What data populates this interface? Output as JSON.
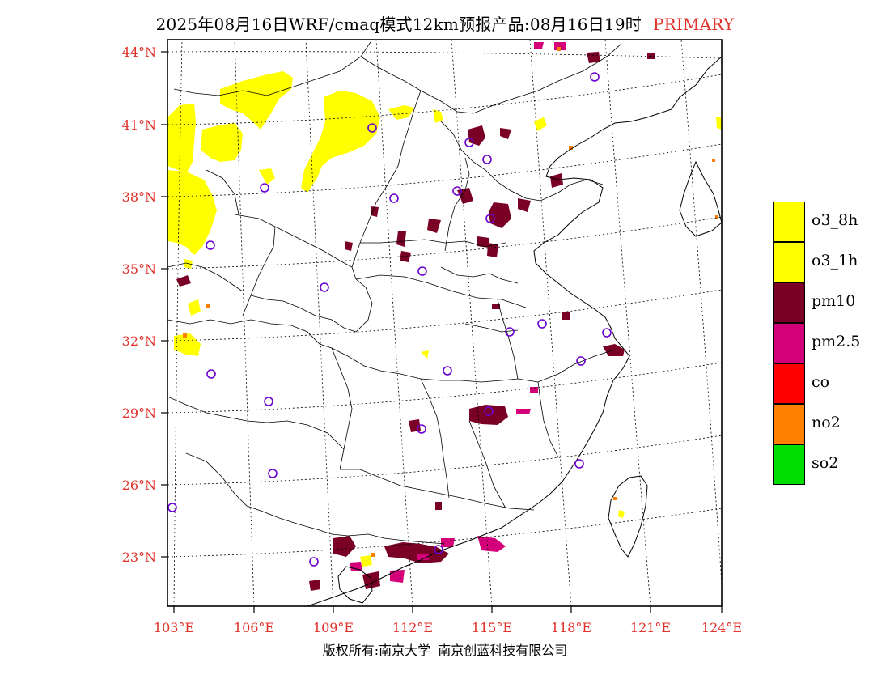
{
  "header": {
    "title": "2025年08月16日WRF/cmaq模式12km预报产品:08月16日19时",
    "tag": "PRIMARY"
  },
  "colors": {
    "label": "#e0312b",
    "o3": "#ffff00",
    "pm10": "#7a0026",
    "pm25": "#d4007a",
    "co": "#ff0000",
    "no2": "#ff7f00",
    "so2": "#00dd00",
    "city_marker": "#6a00d0"
  },
  "axes": {
    "lat_labels": [
      "44°N",
      "41°N",
      "38°N",
      "35°N",
      "32°N",
      "29°N",
      "26°N",
      "23°N"
    ],
    "lon_labels": [
      "103°E",
      "106°E",
      "109°E",
      "112°E",
      "115°E",
      "118°E",
      "121°E",
      "124°E"
    ]
  },
  "legend": {
    "items": [
      {
        "label": "o3_8h",
        "color": "#ffff00"
      },
      {
        "label": "o3_1h",
        "color": "#ffff00"
      },
      {
        "label": "pm10",
        "color": "#7a0026"
      },
      {
        "label": "pm2.5",
        "color": "#d4007a"
      },
      {
        "label": "co",
        "color": "#ff0000"
      },
      {
        "label": "no2",
        "color": "#ff7f00"
      },
      {
        "label": "so2",
        "color": "#00dd00"
      }
    ]
  },
  "footer": {
    "left": "版权所有:南京大学",
    "right": "南京创蓝科技有限公司"
  }
}
